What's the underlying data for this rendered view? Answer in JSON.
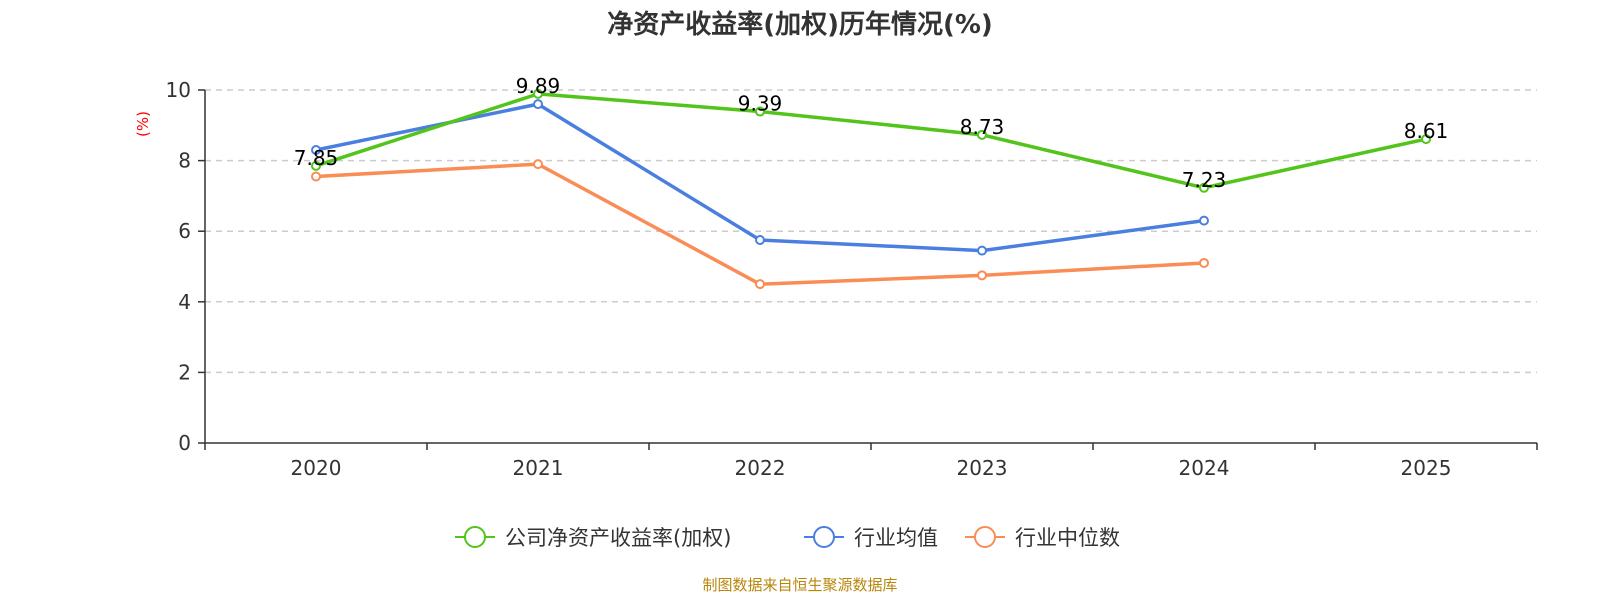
{
  "chart_data": {
    "type": "line",
    "title": "净资产收益率(加权)历年情况(%)",
    "ylabel": "(%)",
    "xlabel": "",
    "categories": [
      "2020",
      "2021",
      "2022",
      "2023",
      "2024",
      "2025"
    ],
    "yticks": [
      "0",
      "2",
      "4",
      "6",
      "8",
      "10"
    ],
    "ylim": [
      0,
      10
    ],
    "grid": true,
    "legend_position": "bottom",
    "series": [
      {
        "name": "公司净资产收益率(加权)",
        "color": "#52c41a",
        "values": [
          7.85,
          9.89,
          9.39,
          8.73,
          7.23,
          8.61
        ],
        "labels": [
          "7.85",
          "9.89",
          "9.39",
          "8.73",
          "7.23",
          "8.61"
        ],
        "show_labels": true
      },
      {
        "name": "行业均值",
        "color": "#4a7fe0",
        "values": [
          8.3,
          9.6,
          5.75,
          5.45,
          6.3,
          null
        ],
        "show_labels": false
      },
      {
        "name": "行业中位数",
        "color": "#fa8c56",
        "values": [
          7.55,
          7.9,
          4.5,
          4.75,
          5.1,
          null
        ],
        "show_labels": false
      }
    ]
  },
  "footer": {
    "source": "制图数据来自恒生聚源数据库"
  }
}
